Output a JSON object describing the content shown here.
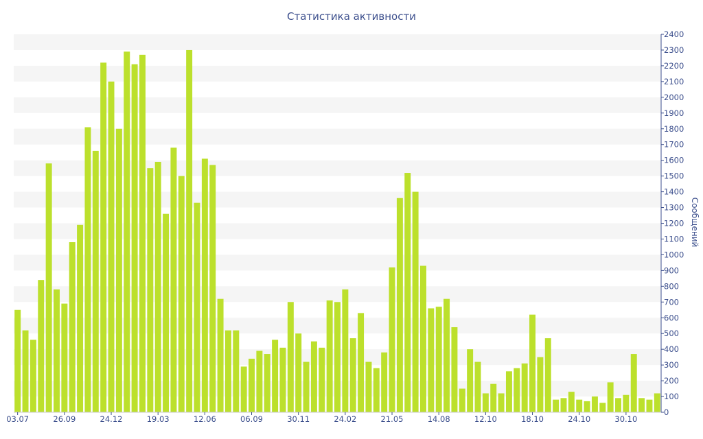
{
  "chart_data": {
    "type": "bar",
    "title": "Статистика активности",
    "ylabel": "Сообщений",
    "xlabel": "",
    "ylim": [
      0,
      2400
    ],
    "y_ticks": [
      0,
      100,
      200,
      300,
      400,
      500,
      600,
      700,
      800,
      900,
      1000,
      1100,
      1200,
      1300,
      1400,
      1500,
      1600,
      1700,
      1800,
      1900,
      2000,
      2100,
      2200,
      2300,
      2400
    ],
    "x_tick_labels": [
      {
        "label": "03.07",
        "index": 0
      },
      {
        "label": "26.09",
        "index": 6
      },
      {
        "label": "24.12",
        "index": 12
      },
      {
        "label": "19.03",
        "index": 18
      },
      {
        "label": "12.06",
        "index": 24
      },
      {
        "label": "06.09",
        "index": 30
      },
      {
        "label": "30.11",
        "index": 36
      },
      {
        "label": "24.02",
        "index": 42
      },
      {
        "label": "21.05",
        "index": 48
      },
      {
        "label": "14.08",
        "index": 54
      },
      {
        "label": "12.10",
        "index": 60
      },
      {
        "label": "18.10",
        "index": 66
      },
      {
        "label": "24.10",
        "index": 72
      },
      {
        "label": "30.10",
        "index": 78
      }
    ],
    "values": [
      650,
      520,
      460,
      840,
      1580,
      780,
      690,
      1080,
      1190,
      1810,
      1660,
      2220,
      2100,
      1800,
      2290,
      2210,
      2270,
      1550,
      1590,
      1260,
      1680,
      1500,
      2300,
      1330,
      1610,
      1570,
      720,
      520,
      520,
      290,
      340,
      390,
      370,
      460,
      410,
      700,
      500,
      320,
      450,
      410,
      710,
      700,
      780,
      470,
      630,
      320,
      280,
      380,
      920,
      1360,
      1520,
      1400,
      930,
      660,
      670,
      720,
      540,
      150,
      400,
      320,
      120,
      180,
      120,
      260,
      280,
      310,
      620,
      350,
      470,
      80,
      90,
      130,
      80,
      70,
      100,
      60,
      190,
      90,
      110,
      370,
      90,
      80,
      120
    ],
    "bar_color": "#bce02c",
    "grid": "horizontal bands",
    "axis_color": "#3b4e8c"
  }
}
